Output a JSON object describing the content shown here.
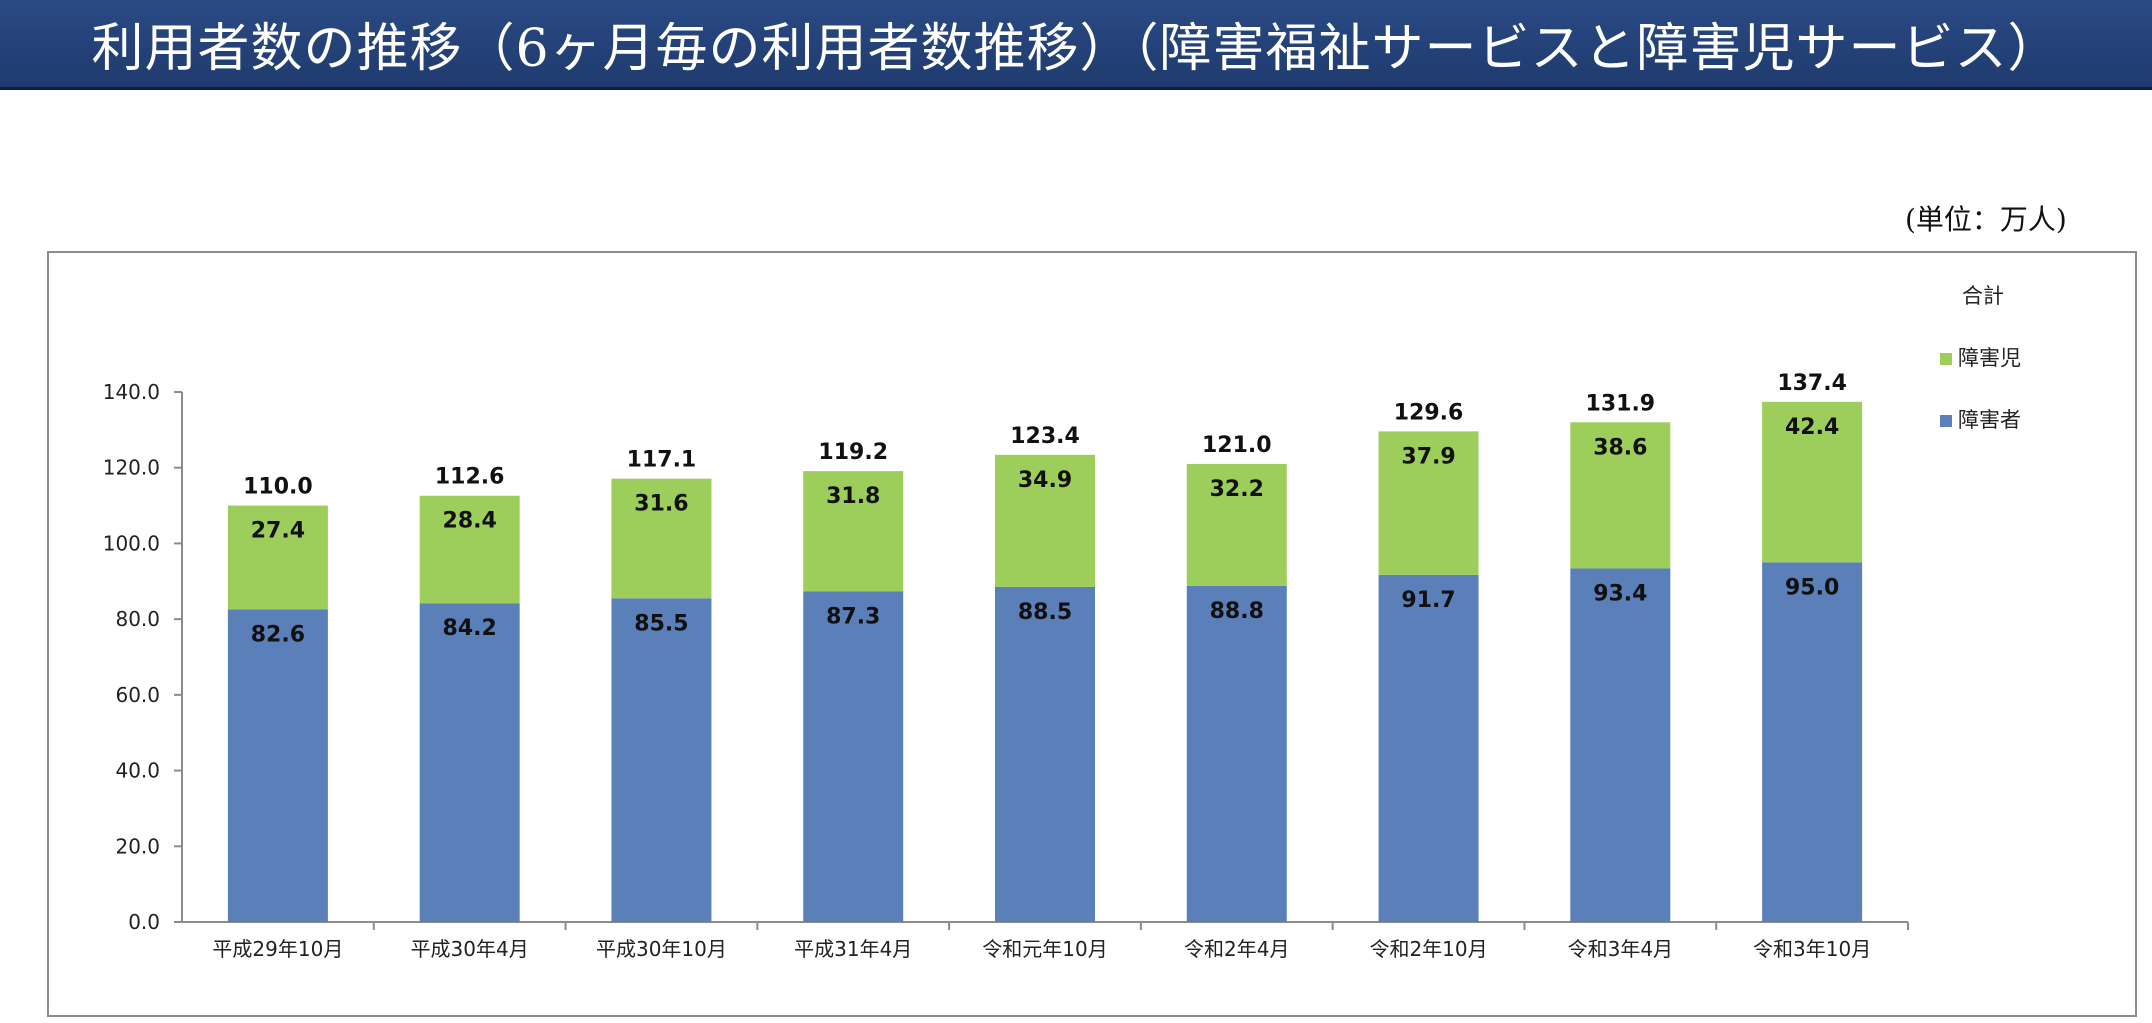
{
  "header": {
    "title": "利用者数の推移（6ヶ月毎の利用者数推移）（障害福祉サービスと障害児サービス）"
  },
  "unit_label": "(単位：万人)",
  "legend": {
    "total": "合計",
    "children": "障害児",
    "adults": "障害者"
  },
  "colors": {
    "adults": "#5b7fb9",
    "children": "#9dcd5a",
    "header_bg": "#244478",
    "axis": "#8c8c8c"
  },
  "chart_data": {
    "type": "bar",
    "stacked": true,
    "title": "",
    "xlabel": "",
    "ylabel": "",
    "ylim": [
      0,
      140
    ],
    "y_ticks": [
      "0.0",
      "20.0",
      "40.0",
      "60.0",
      "80.0",
      "100.0",
      "120.0",
      "140.0"
    ],
    "categories": [
      "平成29年10月",
      "平成30年4月",
      "平成30年10月",
      "平成31年4月",
      "令和元年10月",
      "令和2年4月",
      "令和2年10月",
      "令和3年4月",
      "令和3年10月"
    ],
    "series": [
      {
        "name": "障害者",
        "values": [
          82.6,
          84.2,
          85.5,
          87.3,
          88.5,
          88.8,
          91.7,
          93.4,
          95.0
        ]
      },
      {
        "name": "障害児",
        "values": [
          27.4,
          28.4,
          31.6,
          31.8,
          34.9,
          32.2,
          37.9,
          38.6,
          42.4
        ]
      }
    ],
    "totals": [
      110.0,
      112.6,
      117.1,
      119.2,
      123.4,
      121.0,
      129.6,
      131.9,
      137.4
    ],
    "legend_position": "right"
  }
}
